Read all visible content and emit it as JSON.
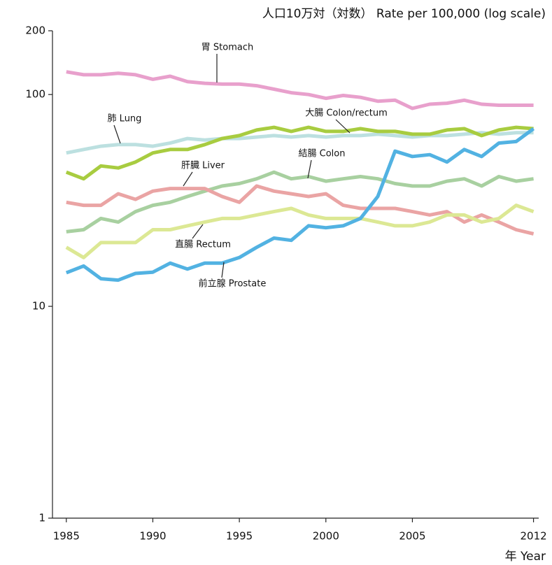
{
  "chart_data": {
    "type": "line",
    "title": "人口10万対（対数） Rate per 100,000 (log scale)",
    "x_label": "年 Year",
    "log_scale": true,
    "x": [
      1985,
      1986,
      1987,
      1988,
      1989,
      1990,
      1991,
      1992,
      1993,
      1994,
      1995,
      1996,
      1997,
      1998,
      1999,
      2000,
      2001,
      2002,
      2003,
      2004,
      2005,
      2006,
      2007,
      2008,
      2009,
      2010,
      2011,
      2012
    ],
    "xlim": [
      1984.2,
      2012.3
    ],
    "xticks": [
      1985,
      1990,
      1995,
      2000,
      2005,
      2012
    ],
    "ylim": [
      1,
      200
    ],
    "yticks": [
      1,
      10,
      100,
      200
    ],
    "series": [
      {
        "name": "胃 Stomach",
        "color": "#e8a0cc",
        "values": [
          128,
          124,
          124,
          126,
          124,
          118,
          122,
          115,
          113,
          112,
          112,
          110,
          106,
          102,
          100,
          96,
          99,
          97,
          93,
          94,
          86,
          90,
          91,
          94,
          90,
          89,
          89,
          89
        ]
      },
      {
        "name": "肺 Lung",
        "color": "#bce0e0",
        "values": [
          53,
          55,
          57,
          58,
          58,
          57,
          59,
          62,
          61,
          62,
          62,
          63,
          64,
          63,
          64,
          63,
          64,
          64,
          65,
          64,
          63,
          64,
          64,
          65,
          66,
          65,
          66,
          66
        ]
      },
      {
        "name": "大腸 Colon/rectum",
        "color": "#a8cc40",
        "values": [
          43,
          40,
          46,
          45,
          48,
          53,
          55,
          55,
          58,
          62,
          64,
          68,
          70,
          67,
          70,
          67,
          67,
          69,
          67,
          67,
          65,
          65,
          68,
          69,
          64,
          68,
          70,
          69
        ]
      },
      {
        "name": "結腸 Colon",
        "color": "#a8d0a0",
        "values": [
          22.5,
          23,
          26,
          25,
          28,
          30,
          31,
          33,
          35,
          37,
          38,
          40,
          43,
          40,
          41,
          39,
          40,
          41,
          40,
          38,
          37,
          37,
          39,
          40,
          37,
          41,
          39,
          40
        ]
      },
      {
        "name": "肝臓 Liver",
        "color": "#eaa4a4",
        "values": [
          31,
          30,
          30,
          34,
          32,
          35,
          36,
          36,
          36,
          33,
          31,
          37,
          35,
          34,
          33,
          34,
          30,
          29,
          29,
          29,
          28,
          27,
          28,
          25,
          27,
          25,
          23,
          22
        ]
      },
      {
        "name": "直腸 Rectum",
        "color": "#dce894",
        "values": [
          19,
          17,
          20,
          20,
          20,
          23,
          23,
          24,
          25,
          26,
          26,
          27,
          28,
          29,
          27,
          26,
          26,
          26,
          25,
          24,
          24,
          25,
          27,
          27,
          25,
          26,
          30,
          28
        ]
      },
      {
        "name": "前立腺 Prostate",
        "color": "#52b2e2",
        "values": [
          14.4,
          15.5,
          13.5,
          13.3,
          14.3,
          14.5,
          16,
          15,
          16,
          16,
          17,
          19,
          21,
          20.5,
          24,
          23.5,
          24,
          26,
          33,
          54,
          51,
          52,
          48,
          55,
          51,
          59,
          60,
          69
        ]
      }
    ]
  }
}
